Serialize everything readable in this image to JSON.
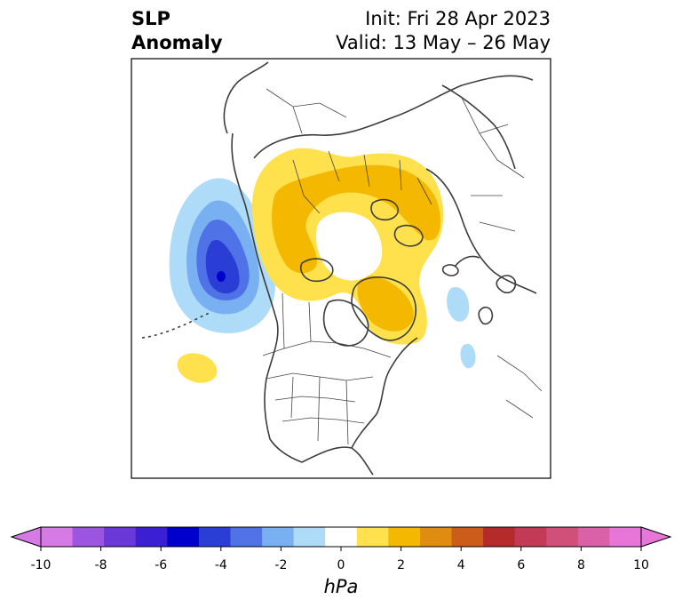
{
  "title": {
    "left_line1": "SLP",
    "left_line2": "Anomaly",
    "right_line1": "Init: Fri 28 Apr 2023",
    "right_line2": "Valid: 13 May – 26 May"
  },
  "colorbar": {
    "unit": "hPa",
    "ticks": [
      "-10",
      "-8",
      "-6",
      "-4",
      "-2",
      "0",
      "2",
      "4",
      "6",
      "8",
      "10"
    ],
    "bins": [
      {
        "color": "#d67be6"
      },
      {
        "color": "#9b55e0"
      },
      {
        "color": "#6a37d8"
      },
      {
        "color": "#3b1fd2"
      },
      {
        "color": "#0000cd"
      },
      {
        "color": "#2a3ed6"
      },
      {
        "color": "#4f73e6"
      },
      {
        "color": "#78b0f2"
      },
      {
        "color": "#aedbf8"
      },
      {
        "color": "#ffffff"
      },
      {
        "color": "#ffe04d"
      },
      {
        "color": "#f5b800"
      },
      {
        "color": "#e08c10"
      },
      {
        "color": "#cc5c1a"
      },
      {
        "color": "#b52a2a"
      },
      {
        "color": "#c23a55"
      },
      {
        "color": "#d0507a"
      },
      {
        "color": "#da60a8"
      },
      {
        "color": "#e875d8"
      }
    ],
    "over_color": "#e875d8",
    "under_color": "#d67be6"
  },
  "map": {
    "projection": "north-polar-stereographic",
    "boundaries": "countries, US states, Canadian provinces"
  }
}
